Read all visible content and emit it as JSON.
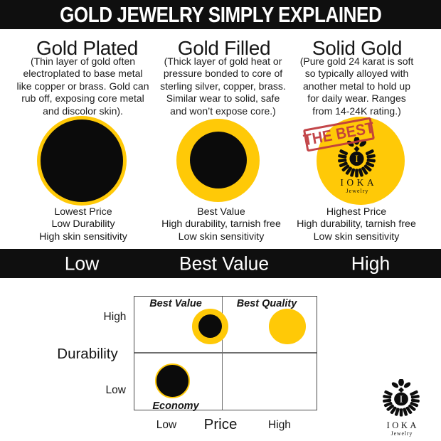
{
  "header": {
    "title": "GOLD JEWELRY SIMPLY EXPLAINED"
  },
  "colors": {
    "gold": "#FFC907",
    "bar_black": "#0f0f0f",
    "stamp_red": "#BF393D"
  },
  "columns": [
    {
      "title": "Gold Plated",
      "description": "(Thin layer of gold often\nelectroplated to base metal\nlike copper or brass. Gold can\nrub off, exposing core metal\nand discolor skin).",
      "traits": "Lowest Price\nLow Durability\nHigh skin sensitivity",
      "scale_label": "Low"
    },
    {
      "title": "Gold Filled",
      "description": "(Thick layer of gold heat or\npressure bonded to core of\nsterling silver, copper, brass.\nSimilar wear to solid, safe\nand won’t expose core.)",
      "traits": "Best Value\nHigh durability, tarnish free\nLow skin sensitivity",
      "scale_label": "Best Value"
    },
    {
      "title": "Solid Gold",
      "description": "(Pure gold 24 karat is soft\nso typically alloyed with\nanother metal to hold up\nfor daily wear. Ranges\nfrom 14-24K rating.)",
      "traits": "Highest Price\nHigh durability, tarnish free\nLow skin sensitivity",
      "scale_label": "High"
    }
  ],
  "stamp": {
    "text": "THE BEST"
  },
  "logo": {
    "brand": "IOKA",
    "sub": "Jewelry",
    "monogram": "I"
  },
  "chart_data": {
    "type": "scatter",
    "xlabel": "Price",
    "ylabel": "Durability",
    "x_ticks": [
      "Low",
      "High"
    ],
    "y_ticks": [
      "High",
      "Low"
    ],
    "quadrant_labels": {
      "top_left": "Best Value",
      "top_right": "Best Quality",
      "bottom_left": "Economy"
    },
    "points": [
      {
        "label": "Best Value",
        "price": "low-mid",
        "durability": "high",
        "appearance": "black core with thick gold ring"
      },
      {
        "label": "Best Quality",
        "price": "high",
        "durability": "high",
        "appearance": "solid gold"
      },
      {
        "label": "Economy",
        "price": "low",
        "durability": "low",
        "appearance": "black with thin gold ring"
      }
    ]
  }
}
